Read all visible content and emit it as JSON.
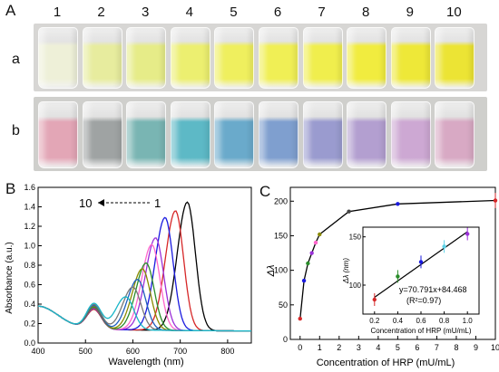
{
  "panels": {
    "A": {
      "letter": "A"
    },
    "B": {
      "letter": "B"
    },
    "C": {
      "letter": "C"
    }
  },
  "photo": {
    "vial_numbers": [
      "1",
      "2",
      "3",
      "4",
      "5",
      "6",
      "7",
      "8",
      "9",
      "10"
    ],
    "row_a": {
      "label": "a",
      "colors": [
        "#eef0d8",
        "#e7ec9e",
        "#e6ec88",
        "#ecef70",
        "#efef5e",
        "#f0ef55",
        "#f0ee4d",
        "#f1ec3f",
        "#eee838",
        "#ece434"
      ]
    },
    "row_b": {
      "label": "b",
      "colors": [
        "#e3a6b6",
        "#9fa3a3",
        "#79b5b3",
        "#5db9c6",
        "#6aaacb",
        "#7f9fcf",
        "#9a9bcf",
        "#b39fd0",
        "#cda8d3",
        "#d8a9c4"
      ]
    }
  },
  "chart_data": [
    {
      "type": "line",
      "panel": "B",
      "xlabel": "Wavelength (nm)",
      "ylabel": "Absorbance (a.u.)",
      "xlim": [
        400,
        850
      ],
      "ylim": [
        0.0,
        1.6
      ],
      "xticks": [
        "400",
        "500",
        "600",
        "700",
        "800"
      ],
      "yticks": [
        "0.0",
        "0.2",
        "0.4",
        "0.6",
        "0.8",
        "1.0",
        "1.2",
        "1.4",
        "1.6"
      ],
      "annotation": {
        "left": "10",
        "right": "1"
      },
      "series": [
        {
          "color": "#000000",
          "peak_x": 715,
          "peak_y": 1.42,
          "shoulder_y": 0.32
        },
        {
          "color": "#d62728",
          "peak_x": 690,
          "peak_y": 1.33,
          "shoulder_y": 0.32
        },
        {
          "color": "#1a1adf",
          "peak_x": 668,
          "peak_y": 1.26,
          "shoulder_y": 0.33
        },
        {
          "color": "#9b30d9",
          "peak_x": 648,
          "peak_y": 1.05,
          "shoulder_y": 0.33
        },
        {
          "color": "#ff66cc",
          "peak_x": 640,
          "peak_y": 0.98,
          "shoulder_y": 0.34
        },
        {
          "color": "#2a8c2a",
          "peak_x": 628,
          "peak_y": 0.79,
          "shoulder_y": 0.34
        },
        {
          "color": "#8a8a00",
          "peak_x": 620,
          "peak_y": 0.73,
          "shoulder_y": 0.35
        },
        {
          "color": "#1f5fbf",
          "peak_x": 610,
          "peak_y": 0.62,
          "shoulder_y": 0.36
        },
        {
          "color": "#777777",
          "peak_x": 600,
          "peak_y": 0.54,
          "shoulder_y": 0.37
        },
        {
          "color": "#19b6c8",
          "peak_x": 585,
          "peak_y": 0.44,
          "shoulder_y": 0.38
        }
      ]
    },
    {
      "type": "line",
      "panel": "C",
      "xlabel": "Concentration of HRP (mU/mL)",
      "ylabel": "Δλ",
      "xlim": [
        -0.5,
        10
      ],
      "ylim": [
        0,
        220
      ],
      "xticks": [
        "0",
        "1",
        "2",
        "3",
        "4",
        "5",
        "6",
        "7",
        "8",
        "9",
        "10"
      ],
      "yticks": [
        "0",
        "50",
        "100",
        "150",
        "200"
      ],
      "x": [
        0,
        0.2,
        0.4,
        0.6,
        0.8,
        1.0,
        2.5,
        5,
        10
      ],
      "y": [
        30,
        85,
        110,
        125,
        140,
        152,
        185,
        196,
        201
      ],
      "point_colors": [
        "#d62728",
        "#1a1adf",
        "#2a8c2a",
        "#9b30d9",
        "#ff66cc",
        "#8a8a00",
        "#444444",
        "#1a1adf",
        "#d62728"
      ],
      "inset": {
        "xlabel": "Concentration of HRP (mU/mL)",
        "ylabel": "Δλ (nm)",
        "xlim": [
          0.1,
          1.1
        ],
        "ylim": [
          70,
          160
        ],
        "xticks": [
          "0.2",
          "0.4",
          "0.6",
          "0.8",
          "1.0"
        ],
        "yticks": [
          "100",
          "150"
        ],
        "x": [
          0.2,
          0.4,
          0.6,
          0.8,
          1.0
        ],
        "y": [
          85,
          109,
          124,
          140,
          153
        ],
        "fit_x": [
          0.2,
          1.0
        ],
        "fit_y": [
          98.6,
          155.3
        ],
        "point_colors": [
          "#d62728",
          "#2a8c2a",
          "#1a1adf",
          "#5fd3e8",
          "#9b30d9"
        ],
        "equation": "y=70.791x+84.468",
        "r2": "(R²=0.97)"
      }
    }
  ]
}
